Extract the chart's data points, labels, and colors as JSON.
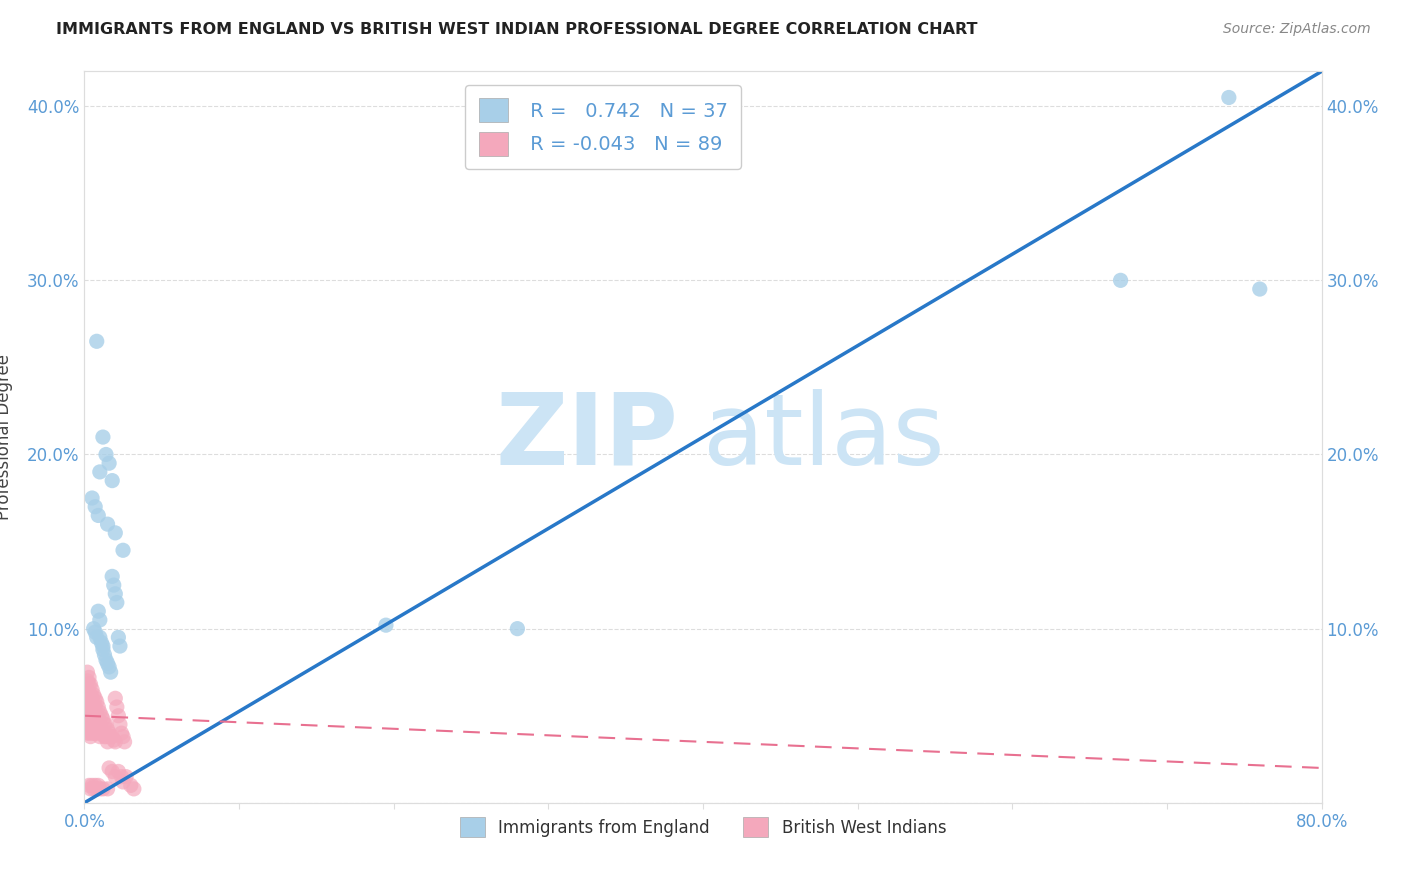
{
  "title": "IMMIGRANTS FROM ENGLAND VS BRITISH WEST INDIAN PROFESSIONAL DEGREE CORRELATION CHART",
  "source": "Source: ZipAtlas.com",
  "ylabel": "Professional Degree",
  "xlim": [
    0.0,
    0.8
  ],
  "ylim": [
    0.0,
    0.42
  ],
  "xticks_major": [
    0.0,
    0.1,
    0.2,
    0.3,
    0.4,
    0.5,
    0.6,
    0.7,
    0.8
  ],
  "xticklabels": [
    "0.0%",
    "",
    "",
    "",
    "",
    "",
    "",
    "",
    "80.0%"
  ],
  "yticks": [
    0.0,
    0.1,
    0.2,
    0.3,
    0.4
  ],
  "yticklabels": [
    "",
    "10.0%",
    "20.0%",
    "30.0%",
    "40.0%"
  ],
  "england_R": "0.742",
  "england_N": "37",
  "bwi_R": "-0.043",
  "bwi_N": "89",
  "legend_label1": "Immigrants from England",
  "legend_label2": "British West Indians",
  "england_scatter_color": "#a8cfe8",
  "bwi_scatter_color": "#f4a8bc",
  "england_line_color": "#2878c8",
  "bwi_line_color": "#e87090",
  "england_line_x": [
    0.0,
    0.8
  ],
  "england_line_y": [
    0.0,
    0.42
  ],
  "bwi_line_x": [
    0.0,
    0.8
  ],
  "bwi_line_y": [
    0.05,
    0.02
  ],
  "england_scatter_x": [
    0.006,
    0.007,
    0.008,
    0.009,
    0.01,
    0.01,
    0.011,
    0.012,
    0.012,
    0.013,
    0.014,
    0.015,
    0.016,
    0.017,
    0.018,
    0.019,
    0.02,
    0.021,
    0.022,
    0.023,
    0.008,
    0.01,
    0.012,
    0.014,
    0.016,
    0.018,
    0.005,
    0.007,
    0.009,
    0.015,
    0.02,
    0.025,
    0.195,
    0.28,
    0.67,
    0.74,
    0.76
  ],
  "england_scatter_y": [
    0.1,
    0.098,
    0.095,
    0.11,
    0.105,
    0.095,
    0.092,
    0.09,
    0.088,
    0.085,
    0.082,
    0.08,
    0.078,
    0.075,
    0.13,
    0.125,
    0.12,
    0.115,
    0.095,
    0.09,
    0.265,
    0.19,
    0.21,
    0.2,
    0.195,
    0.185,
    0.175,
    0.17,
    0.165,
    0.16,
    0.155,
    0.145,
    0.102,
    0.1,
    0.3,
    0.405,
    0.295
  ],
  "bwi_scatter_x": [
    0.001,
    0.001,
    0.001,
    0.001,
    0.001,
    0.002,
    0.002,
    0.002,
    0.002,
    0.002,
    0.002,
    0.002,
    0.002,
    0.003,
    0.003,
    0.003,
    0.003,
    0.003,
    0.003,
    0.003,
    0.004,
    0.004,
    0.004,
    0.004,
    0.004,
    0.004,
    0.005,
    0.005,
    0.005,
    0.005,
    0.005,
    0.006,
    0.006,
    0.006,
    0.006,
    0.007,
    0.007,
    0.007,
    0.007,
    0.008,
    0.008,
    0.008,
    0.009,
    0.009,
    0.009,
    0.01,
    0.01,
    0.01,
    0.011,
    0.011,
    0.012,
    0.012,
    0.013,
    0.013,
    0.014,
    0.014,
    0.015,
    0.015,
    0.016,
    0.017,
    0.018,
    0.019,
    0.02,
    0.02,
    0.021,
    0.022,
    0.023,
    0.024,
    0.025,
    0.026,
    0.003,
    0.004,
    0.005,
    0.006,
    0.007,
    0.008,
    0.009,
    0.01,
    0.012,
    0.015,
    0.016,
    0.018,
    0.02,
    0.022,
    0.024,
    0.025,
    0.027,
    0.03,
    0.032
  ],
  "bwi_scatter_y": [
    0.068,
    0.06,
    0.055,
    0.05,
    0.045,
    0.075,
    0.07,
    0.065,
    0.06,
    0.055,
    0.05,
    0.045,
    0.04,
    0.072,
    0.068,
    0.062,
    0.058,
    0.052,
    0.048,
    0.04,
    0.068,
    0.062,
    0.055,
    0.05,
    0.045,
    0.038,
    0.065,
    0.06,
    0.055,
    0.048,
    0.04,
    0.062,
    0.055,
    0.048,
    0.04,
    0.06,
    0.055,
    0.048,
    0.04,
    0.058,
    0.05,
    0.042,
    0.055,
    0.048,
    0.04,
    0.052,
    0.045,
    0.038,
    0.05,
    0.042,
    0.048,
    0.04,
    0.045,
    0.038,
    0.045,
    0.038,
    0.042,
    0.035,
    0.04,
    0.038,
    0.038,
    0.036,
    0.06,
    0.035,
    0.055,
    0.05,
    0.045,
    0.04,
    0.038,
    0.035,
    0.01,
    0.008,
    0.01,
    0.008,
    0.01,
    0.008,
    0.01,
    0.008,
    0.008,
    0.008,
    0.02,
    0.018,
    0.015,
    0.018,
    0.015,
    0.012,
    0.015,
    0.01,
    0.008
  ],
  "watermark_zip": "ZIP",
  "watermark_atlas": "atlas",
  "watermark_color": "#cce4f5",
  "background_color": "#ffffff",
  "grid_color": "#dddddd",
  "tick_color": "#5b9bd5",
  "axis_color": "#dddddd"
}
